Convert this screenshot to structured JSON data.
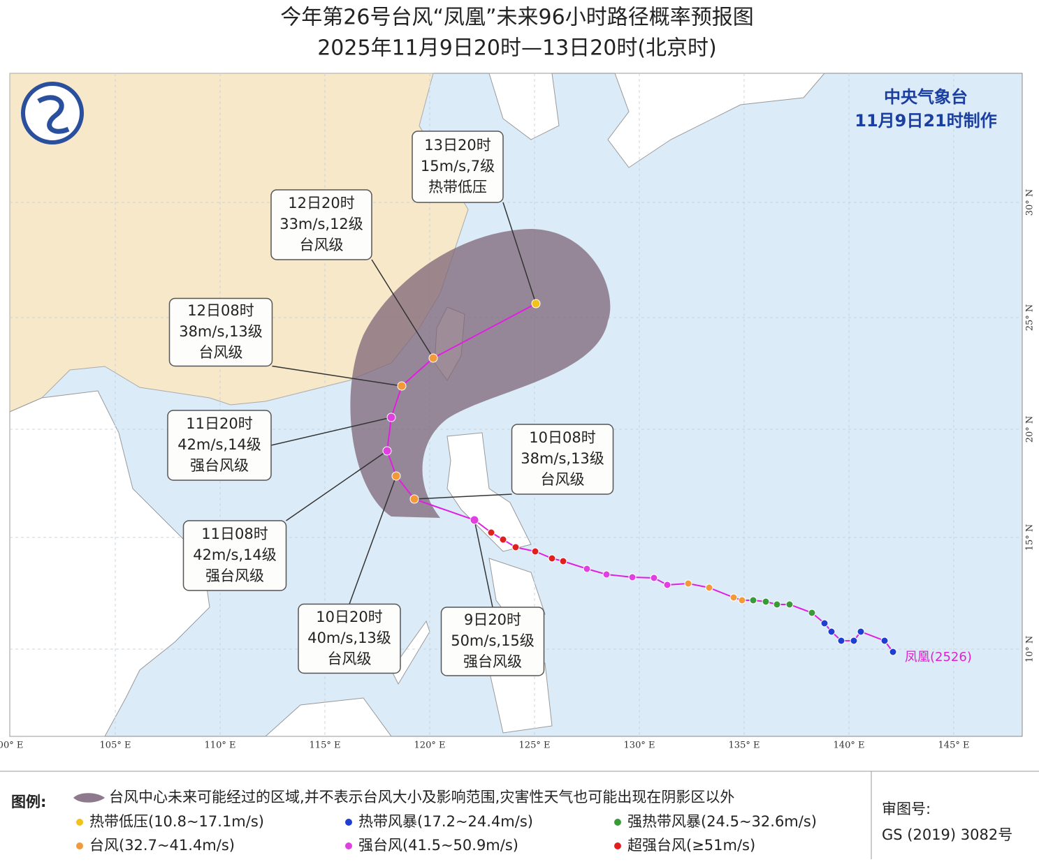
{
  "title": "今年第26号台风“凤凰”未来96小时路径概率预报图",
  "subtitle": "2025年11月9日20时—13日20时(北京时)",
  "agency": "中央气象台",
  "issued": "11月9日21时制作",
  "typhoon_label": "凤凰(2526)",
  "forecasts": [
    {
      "time": "13日20时",
      "wind": "15m/s,7级",
      "grade": "热带低压"
    },
    {
      "time": "12日20时",
      "wind": "33m/s,12级",
      "grade": "台风级"
    },
    {
      "time": "12日08时",
      "wind": "38m/s,13级",
      "grade": "台风级"
    },
    {
      "time": "11日20时",
      "wind": "42m/s,14级",
      "grade": "强台风级"
    },
    {
      "time": "11日08时",
      "wind": "42m/s,14级",
      "grade": "强台风级"
    },
    {
      "time": "10日20时",
      "wind": "40m/s,13级",
      "grade": "台风级"
    },
    {
      "time": "9日20时",
      "wind": "50m/s,15级",
      "grade": "强台风级"
    },
    {
      "time": "10日08时",
      "wind": "38m/s,13级",
      "grade": "台风级"
    }
  ],
  "lon_labels": [
    "00° E",
    "105° E",
    "110° E",
    "115° E",
    "120° E",
    "125° E",
    "130° E",
    "135° E",
    "140° E",
    "145° E"
  ],
  "lat_labels": [
    "30° N",
    "25° N",
    "20° N",
    "15° N",
    "10° N"
  ],
  "legend": {
    "title": "图例:",
    "cone": "台风中心未来可能经过的区域,并不表示台风大小及影响范围,灾害性天气也可能出现在阴影区以外",
    "items": [
      {
        "name": "热带低压(10.8~17.1m/s)",
        "color": "#f2c21b"
      },
      {
        "name": "热带风暴(17.2~24.4m/s)",
        "color": "#1f3fd1"
      },
      {
        "name": "强热带风暴(24.5~32.6m/s)",
        "color": "#3a9a3a"
      },
      {
        "name": "台风(32.7~41.4m/s)",
        "color": "#f29a3a"
      },
      {
        "name": "强台风(41.5~50.9m/s)",
        "color": "#e040e0"
      },
      {
        "name": "超强台风(≥51m/s)",
        "color": "#e0201e"
      }
    ]
  },
  "approval": {
    "label": "审图号:",
    "number": "GS (2019) 3082号"
  }
}
